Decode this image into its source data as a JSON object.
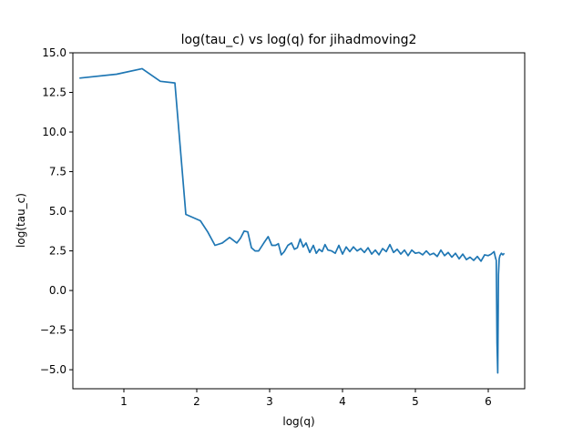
{
  "chart_data": {
    "type": "line",
    "title": "log(tau_c) vs log(q) for jihadmoving2",
    "xlabel": "log(q)",
    "ylabel": "log(tau_c)",
    "xlim": [
      0.3,
      6.5
    ],
    "ylim": [
      -6.2,
      15.0
    ],
    "xticks": [
      1,
      2,
      3,
      4,
      5,
      6
    ],
    "xtick_labels": [
      "1",
      "2",
      "3",
      "4",
      "5",
      "6"
    ],
    "yticks": [
      -5.0,
      -2.5,
      0.0,
      2.5,
      5.0,
      7.5,
      10.0,
      12.5,
      15.0
    ],
    "ytick_labels": [
      "−5.0",
      "−2.5",
      "0.0",
      "2.5",
      "5.0",
      "7.5",
      "10.0",
      "12.5",
      "15.0"
    ],
    "grid": false,
    "legend": "none",
    "series": [
      {
        "color": "#1f77b4",
        "x": [
          0.39,
          0.9,
          1.25,
          1.5,
          1.7,
          1.85,
          1.95,
          2.05,
          2.15,
          2.25,
          2.35,
          2.45,
          2.55,
          2.6,
          2.65,
          2.7,
          2.75,
          2.8,
          2.85,
          2.92,
          2.98,
          3.03,
          3.08,
          3.12,
          3.16,
          3.2,
          3.25,
          3.3,
          3.34,
          3.38,
          3.42,
          3.46,
          3.5,
          3.55,
          3.6,
          3.64,
          3.68,
          3.72,
          3.76,
          3.8,
          3.85,
          3.9,
          3.95,
          4.0,
          4.05,
          4.1,
          4.15,
          4.2,
          4.25,
          4.3,
          4.35,
          4.4,
          4.45,
          4.5,
          4.55,
          4.6,
          4.65,
          4.7,
          4.75,
          4.8,
          4.85,
          4.9,
          4.95,
          5.0,
          5.05,
          5.1,
          5.15,
          5.2,
          5.25,
          5.3,
          5.35,
          5.4,
          5.45,
          5.5,
          5.55,
          5.6,
          5.65,
          5.7,
          5.75,
          5.8,
          5.85,
          5.9,
          5.95,
          6.0,
          6.04,
          6.08,
          6.1,
          6.11,
          6.12,
          6.13,
          6.14,
          6.15,
          6.16,
          6.18,
          6.2,
          6.22
        ],
        "y": [
          13.4,
          13.65,
          14.0,
          13.2,
          13.1,
          4.8,
          4.6,
          4.4,
          3.7,
          2.85,
          3.0,
          3.35,
          3.0,
          3.3,
          3.75,
          3.7,
          2.7,
          2.5,
          2.5,
          3.0,
          3.4,
          2.85,
          2.85,
          2.95,
          2.25,
          2.45,
          2.85,
          3.0,
          2.6,
          2.7,
          3.25,
          2.75,
          3.0,
          2.4,
          2.85,
          2.35,
          2.6,
          2.45,
          2.9,
          2.55,
          2.5,
          2.35,
          2.85,
          2.3,
          2.75,
          2.45,
          2.75,
          2.5,
          2.65,
          2.4,
          2.7,
          2.3,
          2.55,
          2.25,
          2.65,
          2.45,
          2.9,
          2.4,
          2.6,
          2.3,
          2.55,
          2.2,
          2.55,
          2.35,
          2.4,
          2.25,
          2.5,
          2.25,
          2.35,
          2.15,
          2.55,
          2.2,
          2.4,
          2.1,
          2.35,
          2.0,
          2.3,
          1.95,
          2.1,
          1.9,
          2.15,
          1.85,
          2.25,
          2.2,
          2.3,
          2.45,
          2.05,
          1.9,
          -3.3,
          -5.2,
          1.0,
          2.0,
          2.2,
          2.35,
          2.25,
          2.35
        ]
      }
    ]
  }
}
